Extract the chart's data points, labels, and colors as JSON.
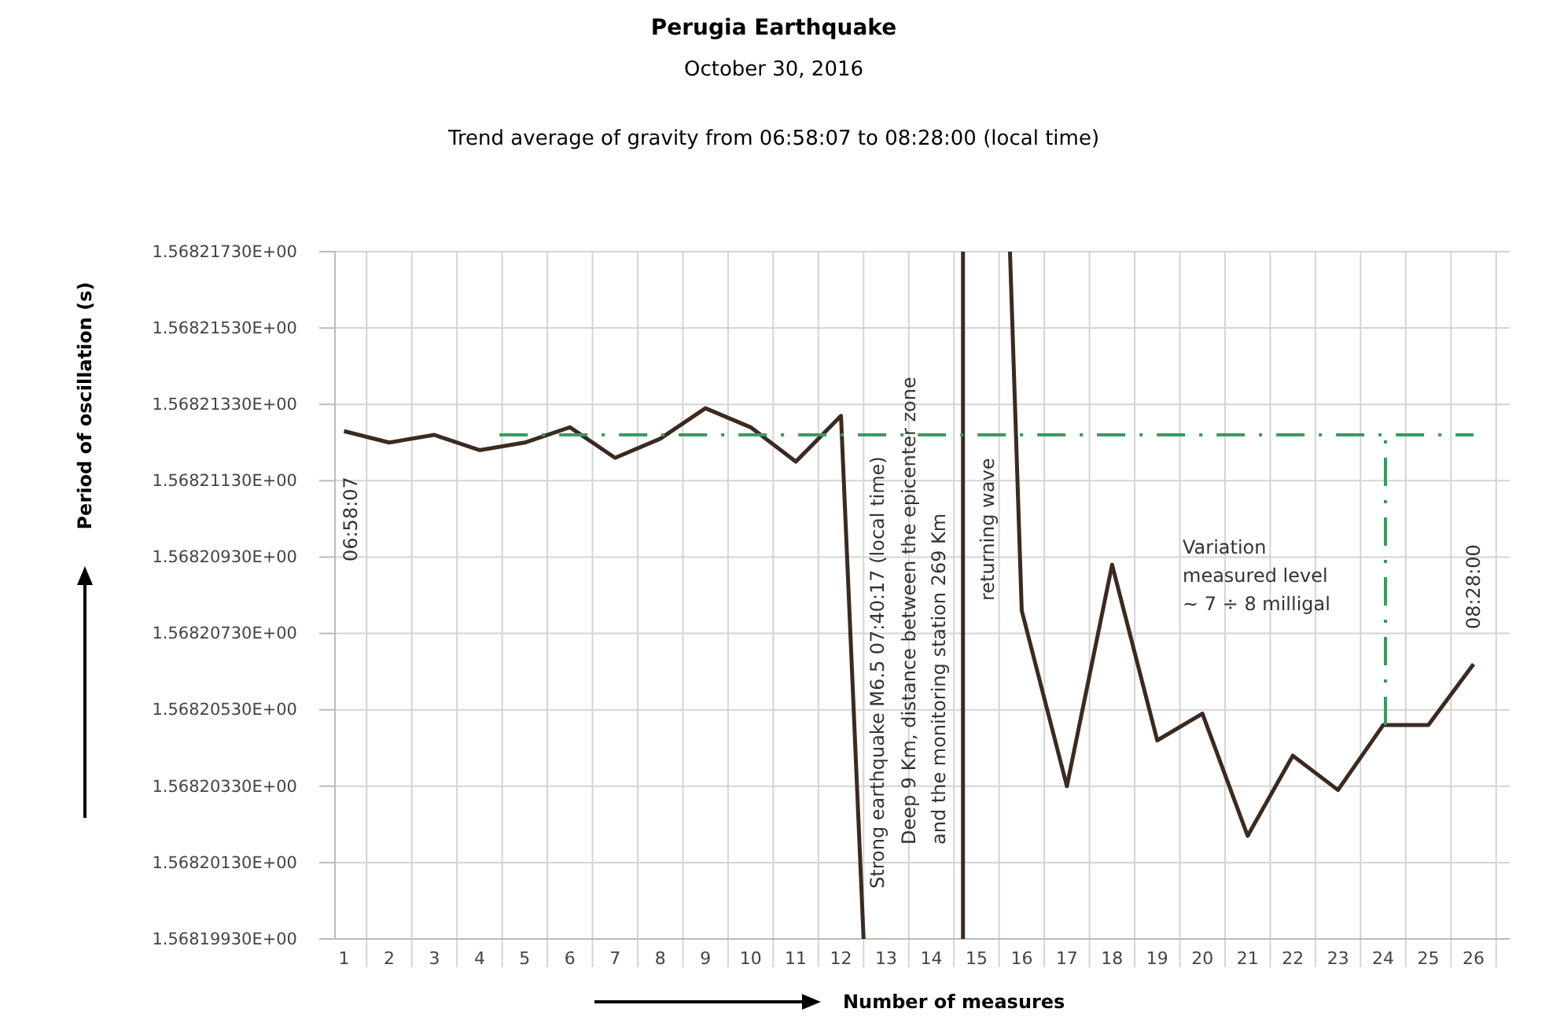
{
  "chart_data": {
    "type": "line",
    "title": "Perugia Earthquake",
    "subtitle": "October 30, 2016",
    "xlabel": "Number of measures",
    "ylabel": "Period of oscillation (s)",
    "xlim": [
      0.8,
      26.8
    ],
    "xticks": [
      1,
      2,
      3,
      4,
      5,
      6,
      7,
      8,
      9,
      10,
      11,
      12,
      13,
      14,
      15,
      16,
      17,
      18,
      19,
      20,
      21,
      22,
      23,
      24,
      25,
      26,
      {
        "value": 1.5,
        "label": null
      },
      {
        "value": 2.5,
        "label": null
      },
      {
        "value": 3.5,
        "label": null
      },
      {
        "value": 4.5,
        "label": null
      },
      {
        "value": 5.5,
        "label": null
      },
      {
        "value": 6.5,
        "label": null
      },
      {
        "value": 7.5,
        "label": null
      },
      {
        "value": 8.5,
        "label": null
      },
      {
        "value": 9.5,
        "label": null
      },
      {
        "value": 10.5,
        "label": null
      },
      {
        "value": 11.5,
        "label": null
      },
      {
        "value": 12.5,
        "label": null
      },
      {
        "value": 13.5,
        "label": null
      },
      {
        "value": 14.5,
        "label": null
      },
      {
        "value": 15.5,
        "label": null
      },
      {
        "value": 16.5,
        "label": null
      },
      {
        "value": 17.5,
        "label": null
      },
      {
        "value": 18.5,
        "label": null
      },
      {
        "value": 19.5,
        "label": null
      },
      {
        "value": 20.5,
        "label": null
      },
      {
        "value": 21.5,
        "label": null
      },
      {
        "value": 22.5,
        "label": null
      },
      {
        "value": 23.5,
        "label": null
      },
      {
        "value": 24.5,
        "label": null
      },
      {
        "value": 25.5,
        "label": null
      },
      {
        "value": 26.5,
        "label": null
      }
    ],
    "ylim": [
      1.5681993,
      1.5682173
    ],
    "yticks": [
      {
        "value": 1.5681993,
        "label": "1.56819930E+00"
      },
      {
        "value": 1.5682013,
        "label": "1.56820130E+00"
      },
      {
        "value": 1.5682033,
        "label": "1.56820330E+00"
      },
      {
        "value": 1.5682053,
        "label": "1.56820530E+00"
      },
      {
        "value": 1.5682073,
        "label": "1.56820730E+00"
      },
      {
        "value": 1.5682093,
        "label": "1.56820930E+00"
      },
      {
        "value": 1.5682113,
        "label": "1.56821130E+00"
      },
      {
        "value": 1.5682133,
        "label": "1.56821330E+00"
      },
      {
        "value": 1.5682153,
        "label": "1.56821530E+00"
      },
      {
        "value": 1.5682173,
        "label": "1.56821730E+00"
      }
    ],
    "grid": true,
    "marker": "none",
    "series": [
      {
        "color": "#3b2a20",
        "line_style": "solid",
        "x": [
          1,
          2,
          3,
          4,
          5,
          6,
          7,
          8,
          9,
          10,
          11,
          12,
          12.5
        ],
        "values": [
          1.5682126,
          1.5682123,
          1.5682125,
          1.5682121,
          1.5682123,
          1.5682127,
          1.5682119,
          1.5682124,
          1.5682132,
          1.5682127,
          1.5682118,
          1.568213,
          1.5681993
        ]
      },
      {
        "color": "#3b2a20",
        "line_style": "solid",
        "x": [
          14.7,
          14.7
        ],
        "values": [
          1.5681993,
          1.5682173
        ]
      },
      {
        "color": "#3b2a20",
        "line_style": "solid",
        "x": [
          15.74,
          16,
          17,
          18,
          19,
          20,
          21,
          22,
          23,
          24,
          25,
          26
        ],
        "values": [
          1.5682173,
          1.5682079,
          1.5682033,
          1.5682091,
          1.5682045,
          1.5682052,
          1.568202,
          1.5682041,
          1.5682032,
          1.5682049,
          1.5682049,
          1.5682065
        ]
      },
      {
        "color": "#3a9a5e",
        "line_style": "dashed",
        "x": [
          4.44,
          26
        ],
        "values": [
          1.5682125,
          1.5682125
        ]
      },
      {
        "color": "#3a9a5e",
        "line_style": "dashed",
        "x": [
          24.05,
          24.05
        ],
        "values": [
          1.5682049,
          1.5682125
        ]
      }
    ],
    "annotations": [
      "Trend average of gravity from 06:58:07 to 08:28:00 (local time)",
      "06:58:07",
      "Strong earthquake M6.5   07:40:17 (local time)",
      "Deep 9 Km, distance between the epicenter zone",
      "and the monitoring station 269 Km",
      "returning wave",
      "08:28:00",
      "Variation",
      "measured level",
      "~ 7 ÷ 8 milligal"
    ]
  }
}
